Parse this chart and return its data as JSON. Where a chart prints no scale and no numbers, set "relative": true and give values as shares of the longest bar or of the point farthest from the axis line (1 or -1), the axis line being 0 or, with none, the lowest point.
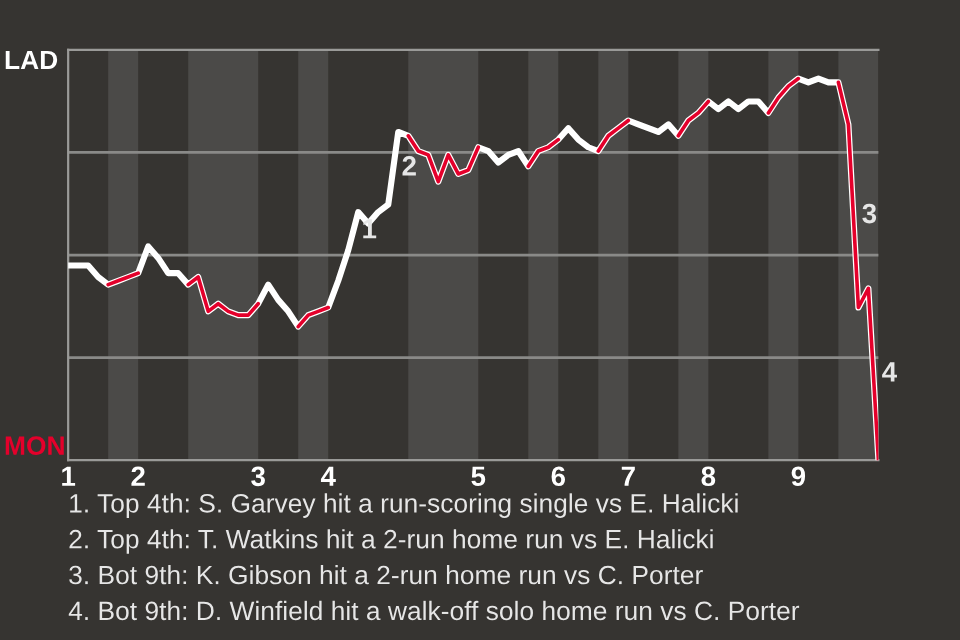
{
  "chart_data": {
    "type": "line",
    "relative": true,
    "categories": [
      "1",
      null,
      null,
      null,
      null,
      null,
      null,
      "2",
      null,
      null,
      null,
      null,
      null,
      null,
      null,
      null,
      null,
      null,
      null,
      "3",
      null,
      null,
      null,
      null,
      null,
      null,
      "4",
      null,
      null,
      null,
      null,
      null,
      null,
      null,
      null,
      null,
      null,
      null,
      null,
      null,
      null,
      "5",
      null,
      null,
      null,
      null,
      null,
      null,
      null,
      "6",
      null,
      null,
      null,
      null,
      null,
      null,
      "7",
      null,
      null,
      null,
      null,
      null,
      null,
      null,
      "8",
      null,
      null,
      null,
      null,
      null,
      null,
      null,
      null,
      "9",
      null,
      null,
      null,
      null,
      null,
      null,
      null,
      null
    ],
    "grid": "y",
    "series": [
      {
        "color": "#ffffff",
        "values": [
          0.51,
          0.51,
          0.51,
          0.48,
          0.46,
          0.47,
          0.48,
          0.49,
          0.56,
          0.53,
          0.49,
          0.49,
          0.46,
          0.48,
          0.39,
          0.41,
          0.39,
          0.38,
          0.38,
          0.41,
          0.46,
          0.42,
          0.39,
          0.35,
          0.38,
          0.39,
          0.4,
          0.47,
          0.55,
          0.65,
          0.62,
          0.65,
          0.67,
          0.86,
          0.85,
          0.81,
          0.8,
          0.73,
          0.8,
          0.75,
          0.76,
          0.82,
          0.81,
          0.78,
          0.8,
          0.81,
          0.77,
          0.81,
          0.82,
          0.84,
          0.87,
          0.84,
          0.82,
          0.81,
          0.85,
          0.87,
          0.89,
          0.88,
          0.87,
          0.86,
          0.88,
          0.85,
          0.89,
          0.91,
          0.94,
          0.92,
          0.94,
          0.92,
          0.94,
          0.94,
          0.91,
          0.95,
          0.98,
          1,
          0.99,
          1,
          0.99,
          0.99,
          0.88,
          0.4,
          0.45,
          0
        ]
      },
      {
        "color": "#e4002b",
        "values": [
          null,
          null,
          null,
          null,
          0.46,
          0.47,
          0.48,
          0.49,
          null,
          null,
          null,
          null,
          0.46,
          0.48,
          0.39,
          0.41,
          0.39,
          0.38,
          0.38,
          0.41,
          null,
          null,
          null,
          0.35,
          0.38,
          0.39,
          0.4,
          null,
          null,
          null,
          null,
          null,
          null,
          null,
          0.85,
          0.81,
          0.8,
          0.73,
          0.8,
          0.75,
          0.76,
          0.82,
          null,
          null,
          null,
          null,
          0.77,
          0.81,
          0.82,
          0.84,
          null,
          null,
          null,
          0.81,
          0.85,
          0.87,
          0.89,
          null,
          null,
          null,
          null,
          0.85,
          0.89,
          0.91,
          0.94,
          null,
          null,
          null,
          null,
          null,
          0.91,
          0.95,
          0.98,
          1,
          null,
          null,
          null,
          0.99,
          0.88,
          0.4,
          0.45,
          0
        ]
      }
    ],
    "annotations": [
      "LAD",
      "MON",
      "1",
      "2",
      "3",
      "4",
      "1. Top 4th: S. Garvey hit a run-scoring single vs E. Halicki",
      "2. Top 4th: T. Watkins hit a 2-run home run vs E. Halicki",
      "3. Bot 9th: K. Gibson hit a 2-run home run vs C. Porter",
      "4. Bot 9th: D. Winfield hit a walk-off solo home run vs C. Porter"
    ]
  }
}
